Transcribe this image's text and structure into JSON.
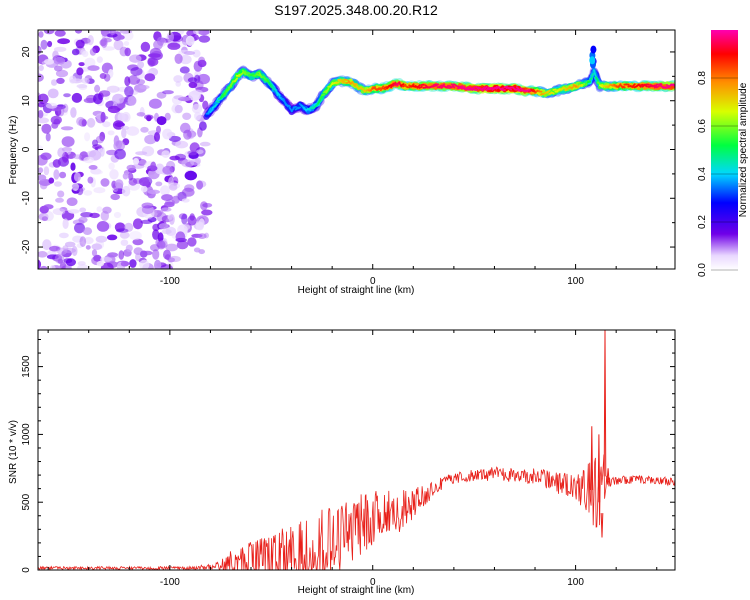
{
  "title": "S197.2025.348.00.20.R12",
  "chart_data": [
    {
      "type": "heatmap",
      "xlabel": "Height of straight line (km)",
      "ylabel": "Frequency (Hz)",
      "xlim": [
        -165,
        149
      ],
      "ylim": [
        -24.5,
        24.5
      ],
      "xticks": [
        "-100",
        "0",
        "100"
      ],
      "yticks": [
        "-20",
        "-10",
        "0",
        "10",
        "20"
      ],
      "noise_region_x": [
        -165,
        -82
      ],
      "ridge": {
        "x": [
          -82,
          -78,
          -74,
          -70,
          -67,
          -64,
          -60,
          -56,
          -52,
          -48,
          -44,
          -40,
          -36,
          -32,
          -28,
          -24,
          -20,
          -16,
          -12,
          -8,
          -4,
          0,
          4,
          8,
          12,
          16,
          20,
          30,
          40,
          50,
          60,
          70,
          75,
          80,
          85,
          90,
          95,
          100,
          104,
          107,
          109,
          112,
          120,
          130,
          140,
          149
        ],
        "y": [
          7,
          9,
          11,
          13,
          15,
          16,
          15,
          15.5,
          14,
          12,
          10,
          8,
          9,
          8,
          9,
          11.5,
          13.5,
          14,
          14,
          13,
          12,
          12.5,
          12.5,
          13,
          13.5,
          13,
          13,
          13,
          13,
          12.5,
          12.5,
          12.5,
          12,
          12,
          11.5,
          12,
          12.5,
          13,
          13.5,
          14,
          16,
          13,
          13,
          13,
          13,
          13
        ],
        "amp": [
          0.3,
          0.35,
          0.45,
          0.5,
          0.55,
          0.5,
          0.45,
          0.5,
          0.45,
          0.35,
          0.3,
          0.3,
          0.3,
          0.35,
          0.4,
          0.5,
          0.55,
          0.6,
          0.65,
          0.6,
          0.6,
          0.7,
          0.7,
          0.75,
          0.8,
          0.7,
          0.75,
          0.8,
          0.8,
          0.85,
          0.9,
          0.9,
          0.85,
          0.7,
          0.6,
          0.55,
          0.6,
          0.65,
          0.5,
          0.4,
          0.35,
          0.55,
          0.7,
          0.75,
          0.8,
          0.85
        ]
      },
      "colorbar": {
        "label": "Normalized spectral amplitude",
        "range": [
          0,
          1
        ],
        "ticks": [
          "0.0",
          "0.2",
          "0.4",
          "0.6",
          "0.8"
        ]
      }
    },
    {
      "type": "line",
      "xlabel": "Height of straight line (km)",
      "ylabel": "SNR (10 * v/v)",
      "xlim": [
        -165,
        149
      ],
      "ylim": [
        0,
        1770
      ],
      "xticks": [
        "-100",
        "0",
        "100"
      ],
      "yticks": [
        "0",
        "500",
        "1000",
        "1500"
      ],
      "color": "#e8201a",
      "envelope": {
        "x": [
          -165,
          -120,
          -90,
          -80,
          -70,
          -60,
          -50,
          -40,
          -30,
          -20,
          -10,
          0,
          10,
          20,
          30,
          40,
          60,
          80,
          90,
          100,
          106,
          110,
          113,
          114,
          115,
          117,
          120,
          130,
          140,
          149
        ],
        "base": [
          15,
          15,
          15,
          25,
          60,
          80,
          100,
          120,
          150,
          200,
          300,
          380,
          420,
          480,
          600,
          680,
          710,
          690,
          650,
          620,
          600,
          580,
          420,
          700,
          680,
          650,
          660,
          670,
          660,
          650
        ],
        "amp": [
          10,
          10,
          10,
          20,
          80,
          130,
          180,
          250,
          300,
          300,
          250,
          200,
          180,
          120,
          60,
          40,
          50,
          60,
          80,
          100,
          200,
          300,
          350,
          300,
          80,
          40,
          30,
          30,
          30,
          30
        ]
      },
      "spikes": [
        {
          "x": 108,
          "y": 1060
        },
        {
          "x": 111.5,
          "y": 1000
        },
        {
          "x": 113,
          "y": 240
        },
        {
          "x": 114.5,
          "y": 1770
        },
        {
          "x": 116,
          "y": 750
        }
      ]
    }
  ]
}
